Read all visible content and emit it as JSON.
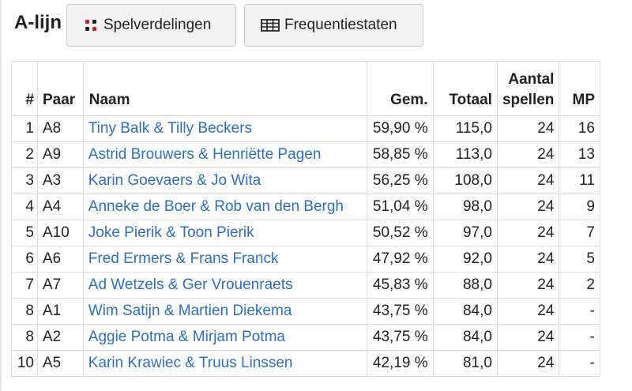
{
  "header": {
    "title": "A-lijn",
    "buttons": [
      {
        "label": "Spelverdelingen",
        "icon": "dice-icon"
      },
      {
        "label": "Frequentiestaten",
        "icon": "table-icon"
      }
    ]
  },
  "table": {
    "columns": {
      "num": "#",
      "paar": "Paar",
      "naam": "Naam",
      "gem": "Gem.",
      "totaal": "Totaal",
      "aantal_line1": "Aantal",
      "aantal_line2": "spellen",
      "mp": "MP"
    },
    "rows": [
      {
        "rank": "1",
        "paar": "A8",
        "naam": "Tiny Balk & Tilly Beckers",
        "gem": "59,90 %",
        "totaal": "115,0",
        "spellen": "24",
        "mp": "16"
      },
      {
        "rank": "2",
        "paar": "A9",
        "naam": "Astrid Brouwers & Henriëtte Pagen",
        "gem": "58,85 %",
        "totaal": "113,0",
        "spellen": "24",
        "mp": "13"
      },
      {
        "rank": "3",
        "paar": "A3",
        "naam": "Karin Goevaers & Jo Wita",
        "gem": "56,25 %",
        "totaal": "108,0",
        "spellen": "24",
        "mp": "11"
      },
      {
        "rank": "4",
        "paar": "A4",
        "naam": "Anneke de Boer & Rob van den Bergh",
        "gem": "51,04 %",
        "totaal": "98,0",
        "spellen": "24",
        "mp": "9"
      },
      {
        "rank": "5",
        "paar": "A10",
        "naam": "Joke Pierik & Toon Pierik",
        "gem": "50,52 %",
        "totaal": "97,0",
        "spellen": "24",
        "mp": "7"
      },
      {
        "rank": "6",
        "paar": "A6",
        "naam": "Fred Ermers & Frans Franck",
        "gem": "47,92 %",
        "totaal": "92,0",
        "spellen": "24",
        "mp": "5"
      },
      {
        "rank": "7",
        "paar": "A7",
        "naam": "Ad Wetzels & Ger Vrouenraets",
        "gem": "45,83 %",
        "totaal": "88,0",
        "spellen": "24",
        "mp": "2"
      },
      {
        "rank": "8",
        "paar": "A1",
        "naam": "Wim Satijn & Martien Diekema",
        "gem": "43,75 %",
        "totaal": "84,0",
        "spellen": "24",
        "mp": "-"
      },
      {
        "rank": "8",
        "paar": "A2",
        "naam": "Aggie Potma & Mirjam Potma",
        "gem": "43,75 %",
        "totaal": "84,0",
        "spellen": "24",
        "mp": "-"
      },
      {
        "rank": "10",
        "paar": "A5",
        "naam": "Karin Krawiec & Truus Linssen",
        "gem": "42,19 %",
        "totaal": "81,0",
        "spellen": "24",
        "mp": "-"
      }
    ]
  },
  "colors": {
    "link": "#2f6fb7",
    "dice_red": "#d0202a",
    "dice_dark": "#222222",
    "border": "#dcdcdc",
    "button_bg": "#f2f2f2"
  }
}
